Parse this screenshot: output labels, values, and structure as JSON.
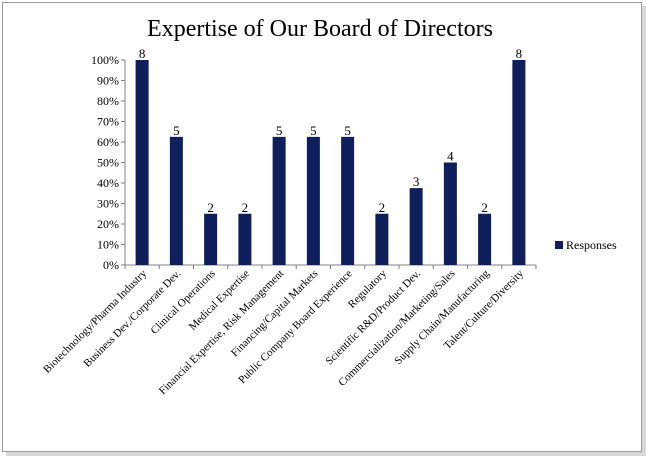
{
  "chart_data": {
    "type": "bar",
    "title": "Expertise of Our Board of Directors",
    "xlabel": "",
    "ylabel": "",
    "ylim": [
      0,
      1
    ],
    "yticks": [
      "0%",
      "10%",
      "20%",
      "30%",
      "40%",
      "50%",
      "60%",
      "70%",
      "80%",
      "90%",
      "100%"
    ],
    "categories": [
      "Biotechnology/Pharma Industry",
      "Business Dev./Corporate Dev.",
      "Clinical Operations",
      "Medical Expertise",
      "Financial Expertise, Risk Management",
      "Financing/Capital Markets",
      "Public Company Board Experience",
      "Regulatory",
      "Scientific R&D/Product Dev.",
      "Commercialization/Marketing/Sales",
      "Supply Chain/Manufacturing",
      "Talent/Culture/Diversity"
    ],
    "series": [
      {
        "name": "Responses",
        "color": "#0f1f5c",
        "values": [
          1.0,
          0.625,
          0.25,
          0.25,
          0.625,
          0.625,
          0.625,
          0.25,
          0.375,
          0.5,
          0.25,
          1.0
        ],
        "data_labels": [
          "8",
          "5",
          "2",
          "2",
          "5",
          "5",
          "5",
          "2",
          "3",
          "4",
          "2",
          "8"
        ]
      }
    ],
    "legend": {
      "position": "right",
      "entries": [
        "Responses"
      ]
    },
    "grid": false
  }
}
